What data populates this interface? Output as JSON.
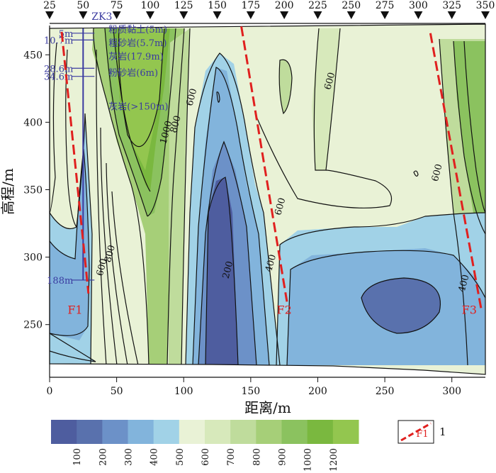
{
  "chart_data": {
    "type": "heatmap",
    "xlabel": "距离/m",
    "ylabel": "高程/m",
    "xlim": [
      0,
      325
    ],
    "ylim": [
      212,
      478
    ],
    "x_ticks": [
      0,
      50,
      100,
      150,
      200,
      250,
      300
    ],
    "y_ticks": [
      250,
      300,
      350,
      400,
      450
    ],
    "station_positions": [
      25,
      50,
      75,
      100,
      125,
      150,
      175,
      200,
      225,
      250,
      275,
      300,
      325,
      350
    ],
    "station_labels": [
      "25",
      "50",
      "75",
      "100",
      "125",
      "150",
      "175",
      "200",
      "225",
      "250",
      "275",
      "300",
      "325",
      "350"
    ],
    "borehole": {
      "name": "ZK3",
      "x": 25,
      "depth_marks": [
        {
          "label": "5m",
          "elev": 466
        },
        {
          "label": "10.7m",
          "elev": 461
        },
        {
          "label": "28.6m",
          "elev": 440
        },
        {
          "label": "34.6m",
          "elev": 434
        },
        {
          "label": "188m",
          "elev": 283
        }
      ],
      "strata": [
        {
          "label": "粉质黏土(5m)",
          "elev": 469
        },
        {
          "label": "粗砂岩(5.7m)",
          "elev": 459
        },
        {
          "label": "灰岩(17.9m)",
          "elev": 449
        },
        {
          "label": "粉砂岩(6m)",
          "elev": 437
        },
        {
          "label": "灰岩(>150m)",
          "elev": 412
        }
      ]
    },
    "contour_labels": [
      {
        "text": "600",
        "x": 108,
        "y": 418
      },
      {
        "text": "1000",
        "x": 89,
        "y": 392
      },
      {
        "text": "800",
        "x": 96,
        "y": 398
      },
      {
        "text": "600",
        "x": 211,
        "y": 430
      },
      {
        "text": "600",
        "x": 291,
        "y": 362
      },
      {
        "text": "600",
        "x": 174,
        "y": 337
      },
      {
        "text": "800",
        "x": 47,
        "y": 302
      },
      {
        "text": "600",
        "x": 41,
        "y": 292
      },
      {
        "text": "200",
        "x": 135,
        "y": 290
      },
      {
        "text": "400",
        "x": 167,
        "y": 295
      },
      {
        "text": "400",
        "x": 311,
        "y": 280
      }
    ],
    "faults": [
      {
        "name": "F1",
        "x1": 9,
        "y1": 467,
        "x2": 29,
        "y2": 273,
        "label_x": 19,
        "label_y": 258
      },
      {
        "name": "F2",
        "x1": 143,
        "y1": 471,
        "x2": 177,
        "y2": 267,
        "label_x": 175,
        "label_y": 258
      },
      {
        "name": "F3",
        "x1": 284,
        "y1": 466,
        "x2": 322,
        "y2": 261,
        "label_x": 313,
        "label_y": 258
      }
    ],
    "legend": {
      "levels": [
        100,
        200,
        300,
        400,
        500,
        600,
        700,
        800,
        900,
        1000,
        1200
      ],
      "colors": [
        "#4e5d9f",
        "#5971ad",
        "#6c91c8",
        "#82b4dc",
        "#a1d2e7",
        "#e9f2d6",
        "#d7e9bb",
        "#bfdc9c",
        "#a6cf78",
        "#8bc25f",
        "#7ab83f",
        "#93c64f"
      ],
      "fault_symbol_label": "F1",
      "fault_symbol_number": "1"
    }
  }
}
